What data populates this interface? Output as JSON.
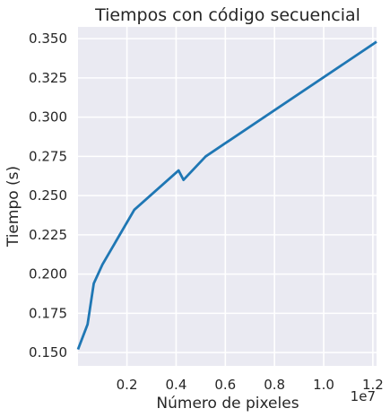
{
  "chart_data": {
    "type": "line",
    "title": "Tiempos con código secuencial",
    "xlabel": "Número de pixeles",
    "ylabel": "Tiempo (s)",
    "x_offset_label": "1e7",
    "x_scale": 10000000,
    "xlim": [
      0.01,
      12.15
    ],
    "ylim": [
      0.1415,
      0.3575
    ],
    "x_ticks": [
      2,
      4,
      6,
      8,
      10,
      12
    ],
    "x_tick_labels": [
      "0.2",
      "0.4",
      "0.6",
      "0.8",
      "1.0",
      "1.2"
    ],
    "y_ticks": [
      0.15,
      0.175,
      0.2,
      0.225,
      0.25,
      0.275,
      0.3,
      0.325,
      0.35
    ],
    "y_tick_labels": [
      "0.150",
      "0.175",
      "0.200",
      "0.225",
      "0.250",
      "0.275",
      "0.300",
      "0.325",
      "0.350"
    ],
    "grid": true,
    "background": "#EAEAF2",
    "grid_color": "#FFFFFF",
    "line_color": "#1F77B4",
    "series": [
      {
        "x": [
          0.01,
          0.4,
          0.65,
          1.0,
          2.3,
          4.1,
          4.3,
          5.2,
          12.15
        ],
        "y": [
          0.152,
          0.168,
          0.194,
          0.206,
          0.241,
          0.266,
          0.26,
          0.275,
          0.348
        ]
      }
    ]
  }
}
